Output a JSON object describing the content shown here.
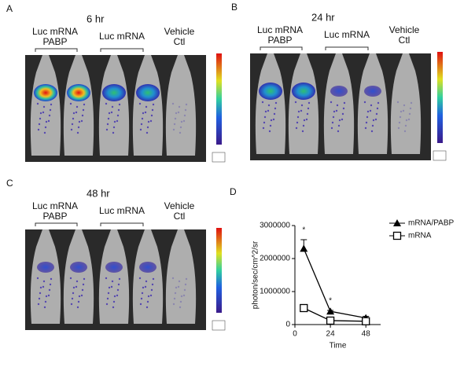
{
  "panels": [
    {
      "letter": "A",
      "time": "6 hr",
      "groups": [
        [
          "Luc mRNA",
          "PABP"
        ],
        [
          "Luc mRNA"
        ],
        [
          "Vehicle",
          "Ctl"
        ]
      ]
    },
    {
      "letter": "B",
      "time": "24 hr",
      "groups": [
        [
          "Luc mRNA",
          "PABP"
        ],
        [
          "Luc mRNA"
        ],
        [
          "Vehicle",
          "Ctl"
        ]
      ]
    },
    {
      "letter": "C",
      "time": "48 hr",
      "groups": [
        [
          "Luc mRNA",
          "PABP"
        ],
        [
          "Luc mRNA"
        ],
        [
          "Vehicle",
          "Ctl"
        ]
      ]
    }
  ],
  "chart_data": {
    "letter": "D",
    "type": "line",
    "x_label": "Time",
    "y_label": "photon/sec/cm^2/sr",
    "x": [
      6,
      24,
      48
    ],
    "xlim": [
      0,
      58
    ],
    "xticks": [
      0,
      24,
      48
    ],
    "ylim": [
      0,
      3000000
    ],
    "yticks": [
      0,
      1000000,
      2000000,
      3000000
    ],
    "series": [
      {
        "name": "mRNA/PABP",
        "color": "#000000",
        "marker": "triangle",
        "values": [
          2300000,
          400000,
          200000
        ],
        "errors": [
          270000,
          30000,
          50000
        ]
      },
      {
        "name": "mRNA",
        "color": "#000000",
        "marker": "open-square",
        "values": [
          500000,
          120000,
          100000
        ],
        "errors": [
          40000,
          20000,
          20000
        ]
      }
    ],
    "annotations": [
      "*",
      "*"
    ],
    "legend": "upper-right"
  }
}
